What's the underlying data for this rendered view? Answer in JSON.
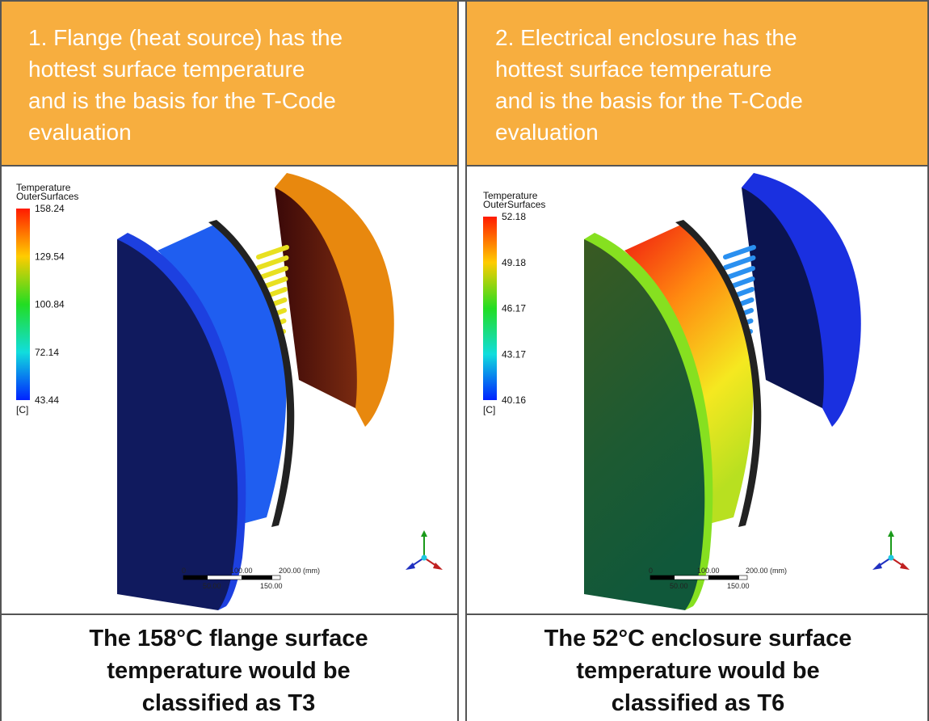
{
  "panels": [
    {
      "header": [
        "1. Flange (heat source) has the",
        "hottest surface temperature",
        "and is the basis for the T-Code",
        "evaluation"
      ],
      "legend": {
        "title": "Temperature",
        "subtitle": "OuterSurfaces",
        "labels": [
          "158.24",
          "129.54",
          "100.84",
          "72.14",
          "43.44"
        ],
        "unit": "[C]"
      },
      "scale": {
        "top": [
          "0",
          "100.00",
          "200.00 (mm)"
        ],
        "bottom": [
          "50.00",
          "150.00"
        ]
      },
      "footer": [
        "The 158°C flange surface",
        "temperature would be",
        "classified as T3"
      ]
    },
    {
      "header": [
        "2. Electrical enclosure has the",
        "hottest surface temperature",
        "and is the basis for the T-Code",
        "evaluation"
      ],
      "legend": {
        "title": "Temperature",
        "subtitle": "OuterSurfaces",
        "labels": [
          "52.18",
          "49.18",
          "46.17",
          "43.17",
          "40.16"
        ],
        "unit": "[C]"
      },
      "scale": {
        "top": [
          "0",
          "100.00",
          "200.00 (mm)"
        ],
        "bottom": [
          "50.00",
          "150.00"
        ]
      },
      "footer": [
        "The 52°C enclosure surface",
        "temperature would be",
        "classified as T6"
      ]
    }
  ]
}
